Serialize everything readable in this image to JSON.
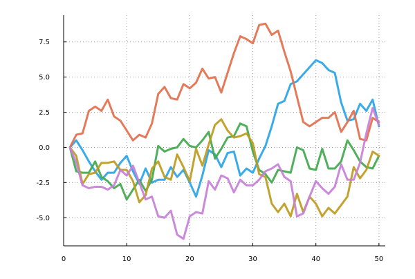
{
  "chart_data": {
    "type": "line",
    "title": "",
    "xlabel": "",
    "ylabel": "",
    "xlim": [
      0,
      51
    ],
    "ylim": [
      -7,
      9.4
    ],
    "xticks": [
      0,
      10,
      20,
      30,
      40,
      50
    ],
    "xtick_labels": [
      "0",
      "10",
      "20",
      "30",
      "40",
      "50"
    ],
    "yticks": [
      -5,
      -2.5,
      0,
      2.5,
      5,
      7.5
    ],
    "ytick_labels": [
      "-5.0",
      "-2.5",
      "0.0",
      "2.5",
      "5.0",
      "7.5"
    ],
    "grid": true,
    "legend": "none",
    "x": [
      1,
      2,
      3,
      4,
      5,
      6,
      7,
      8,
      9,
      10,
      11,
      12,
      13,
      14,
      15,
      16,
      17,
      18,
      19,
      20,
      21,
      22,
      23,
      24,
      25,
      26,
      27,
      28,
      29,
      30,
      31,
      32,
      33,
      34,
      35,
      36,
      37,
      38,
      39,
      40,
      41,
      42,
      43,
      44,
      45,
      46,
      47,
      48,
      49,
      50
    ],
    "series": [
      {
        "color": "#28a4e6",
        "values": [
          0,
          0.5,
          -0.2,
          -1,
          -1.7,
          -2.3,
          -1.8,
          -1.8,
          -1.1,
          -0.6,
          -1.7,
          -2.6,
          -1.5,
          -2.5,
          -2.3,
          -2.3,
          -1.4,
          -2.1,
          -1.6,
          -2.5,
          -3.5,
          -2,
          -0.2,
          -0.5,
          -1.4,
          -0.4,
          -0.3,
          -2,
          -1.5,
          -1.8,
          -0.8,
          0.1,
          1.5,
          3.1,
          3.3,
          4.5,
          4.7,
          5.2,
          5.7,
          6.2,
          6,
          5.5,
          5.3,
          3.2,
          1.9,
          2,
          3.1,
          2.6,
          3.4,
          1.5
        ]
      },
      {
        "color": "#e36f4d",
        "values": [
          0,
          0.9,
          1,
          2.6,
          2.9,
          2.6,
          3.4,
          2.2,
          1.9,
          1.2,
          0.5,
          0.9,
          0.7,
          1.7,
          3.8,
          4.3,
          3.5,
          3.4,
          4.5,
          4.2,
          4.6,
          5.6,
          4.9,
          5,
          3.9,
          5.3,
          6.7,
          7.9,
          7.7,
          7.4,
          8.7,
          8.8,
          8,
          8.3,
          6.8,
          5.4,
          3.6,
          1.8,
          1.5,
          1.8,
          2.1,
          2.1,
          2.5,
          1.1,
          1.8,
          2.6,
          0.6,
          0.5,
          2.1,
          1.8
        ]
      },
      {
        "color": "#40a84c",
        "values": [
          0,
          -1.7,
          -1.8,
          -1.8,
          -1,
          -2.1,
          -2.4,
          -2.9,
          -2.6,
          -3.7,
          -3,
          -2.3,
          -3.1,
          -2.3,
          0.1,
          -0.3,
          -0.1,
          0,
          0.6,
          0.1,
          0,
          0.5,
          1.1,
          -0.8,
          -0.1,
          0.7,
          0.8,
          1.7,
          1.5,
          -0.3,
          -1.6,
          -1.9,
          -2.5,
          -1.6,
          -1.7,
          -1.8,
          0,
          -0.2,
          -1.5,
          -1.6,
          -0.1,
          -1.5,
          -1.5,
          -1,
          0.5,
          -0.2,
          -1,
          -1.4,
          -1.5,
          -0.6
        ]
      },
      {
        "color": "#bd9b1e",
        "values": [
          0,
          -0.6,
          -2.6,
          -1.9,
          -1.8,
          -1.1,
          -1.1,
          -1,
          -1.6,
          -1.6,
          -2.4,
          -3.9,
          -3.4,
          -1.5,
          -1,
          -2.1,
          -2.3,
          -0.5,
          -1.4,
          -2.4,
          -0.1,
          -1.3,
          0.2,
          1.6,
          2,
          1.2,
          0.7,
          0.8,
          1,
          0.3,
          -1.9,
          -2.1,
          -4,
          -4.6,
          -4,
          -4.9,
          -3.3,
          -4.6,
          -3.5,
          -4,
          -4.9,
          -4.3,
          -4.7,
          -4.1,
          -3.5,
          -1.4,
          -2.2,
          -1.6,
          -0.3,
          -0.6
        ]
      },
      {
        "color": "#c77fd9",
        "values": [
          0,
          -1.1,
          -2.7,
          -2.9,
          -2.8,
          -2.8,
          -3,
          -2.7,
          -1.6,
          -2,
          -1.3,
          -2.5,
          -3.7,
          -3.5,
          -4.9,
          -5,
          -4.5,
          -6.2,
          -6.5,
          -4.9,
          -4.6,
          -4.7,
          -2.4,
          -3,
          -2,
          -2.2,
          -3.2,
          -2.3,
          -2.7,
          -2.7,
          -2.3,
          -1.7,
          -1.5,
          -1.2,
          -2.1,
          -2.4,
          -4.9,
          -4.7,
          -3.5,
          -2.4,
          -2.9,
          -3.3,
          -2.8,
          -1.2,
          -2.3,
          -2.3,
          -1.1,
          1,
          2.8,
          1.6
        ]
      }
    ]
  }
}
